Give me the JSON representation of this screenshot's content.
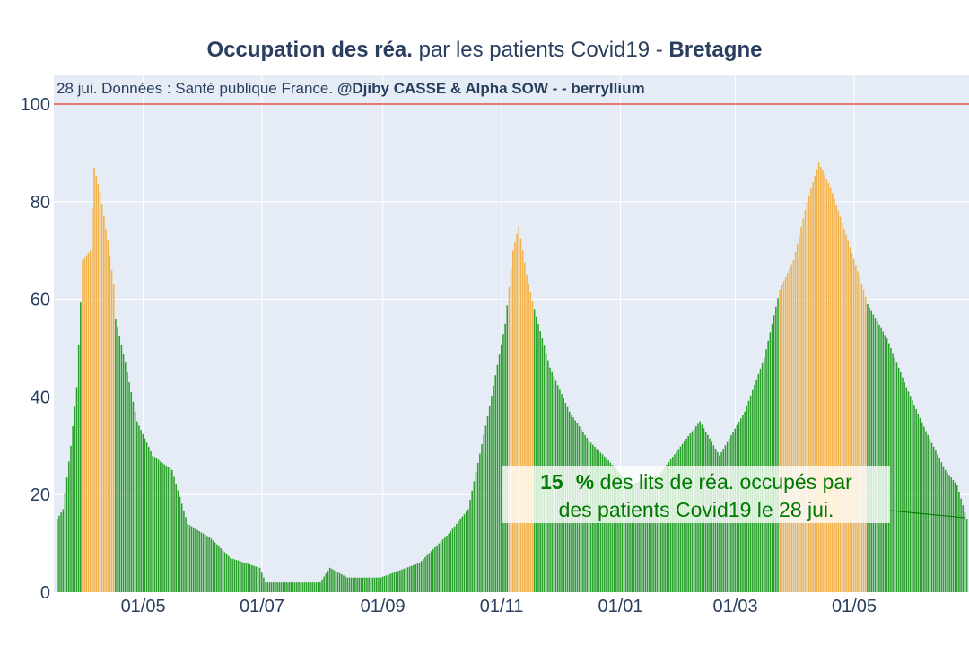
{
  "title": {
    "bold_part": "Occupation des réa.",
    "regular_part": " par les patients Covid19 - ",
    "region": "Bretagne"
  },
  "subtitle": {
    "regular": "28 jui. Données : Santé publique France. ",
    "bold": "@Djiby CASSE & Alpha SOW -  - berryllium"
  },
  "annotation": {
    "value": "15",
    "pct": "%",
    "line1_rest": " des lits de réa. occupés par",
    "line2": "des patients Covid19 le 28 jui."
  },
  "colors": {
    "background": "#e5ecf6",
    "green_bar": "#2ca02c",
    "orange_bar": "#f2b24b",
    "threshold_line": "#e8504b",
    "annotation_text": "#007a00",
    "text": "#2a3f5f"
  },
  "chart_data": {
    "type": "bar",
    "x_start": "2020-03-18",
    "x_end": "2021-06-28",
    "xlabel": "",
    "ylabel": "",
    "ylim": [
      0,
      100
    ],
    "y_ticks": [
      0,
      20,
      40,
      60,
      80,
      100
    ],
    "x_ticks": [
      {
        "date": "2020-05-01",
        "label": "01/05"
      },
      {
        "date": "2020-07-01",
        "label": "01/07"
      },
      {
        "date": "2020-09-01",
        "label": "01/09"
      },
      {
        "date": "2020-11-01",
        "label": "01/11"
      },
      {
        "date": "2021-01-01",
        "label": "01/01"
      },
      {
        "date": "2021-03-01",
        "label": "01/03"
      },
      {
        "date": "2021-05-01",
        "label": "01/05"
      }
    ],
    "threshold": 100,
    "series_profile": [
      [
        "2020-03-18",
        15
      ],
      [
        "2020-03-21",
        17
      ],
      [
        "2020-03-25",
        30
      ],
      [
        "2020-03-28",
        42
      ],
      [
        "2020-03-31",
        68
      ],
      [
        "2020-04-04",
        70
      ],
      [
        "2020-04-06",
        87
      ],
      [
        "2020-04-09",
        82
      ],
      [
        "2020-04-13",
        72
      ],
      [
        "2020-04-16",
        63
      ],
      [
        "2020-04-17",
        56
      ],
      [
        "2020-04-22",
        47
      ],
      [
        "2020-04-28",
        35
      ],
      [
        "2020-05-06",
        28
      ],
      [
        "2020-05-16",
        25
      ],
      [
        "2020-05-24",
        14
      ],
      [
        "2020-06-05",
        11
      ],
      [
        "2020-06-15",
        7
      ],
      [
        "2020-06-30",
        5
      ],
      [
        "2020-07-03",
        2
      ],
      [
        "2020-07-31",
        2
      ],
      [
        "2020-08-05",
        5
      ],
      [
        "2020-08-14",
        3
      ],
      [
        "2020-08-31",
        3
      ],
      [
        "2020-09-20",
        6
      ],
      [
        "2020-10-05",
        12
      ],
      [
        "2020-10-15",
        17
      ],
      [
        "2020-10-25",
        36
      ],
      [
        "2020-11-03",
        55
      ],
      [
        "2020-11-07",
        70
      ],
      [
        "2020-11-10",
        75
      ],
      [
        "2020-11-14",
        65
      ],
      [
        "2020-11-18",
        58
      ],
      [
        "2020-11-26",
        46
      ],
      [
        "2020-12-06",
        37
      ],
      [
        "2020-12-16",
        31
      ],
      [
        "2020-12-26",
        27
      ],
      [
        "2021-01-06",
        22
      ],
      [
        "2021-01-21",
        24
      ],
      [
        "2021-02-05",
        32
      ],
      [
        "2021-02-11",
        35
      ],
      [
        "2021-02-21",
        28
      ],
      [
        "2021-03-06",
        37
      ],
      [
        "2021-03-16",
        48
      ],
      [
        "2021-03-24",
        62
      ],
      [
        "2021-03-31",
        68
      ],
      [
        "2021-04-07",
        80
      ],
      [
        "2021-04-13",
        88
      ],
      [
        "2021-04-19",
        83
      ],
      [
        "2021-04-28",
        72
      ],
      [
        "2021-05-06",
        62
      ],
      [
        "2021-05-08",
        59
      ],
      [
        "2021-05-18",
        52
      ],
      [
        "2021-05-28",
        42
      ],
      [
        "2021-06-07",
        33
      ],
      [
        "2021-06-17",
        25
      ],
      [
        "2021-06-23",
        22
      ],
      [
        "2021-06-28",
        15
      ]
    ],
    "highlight_periods": [
      {
        "from": "2020-03-31",
        "to": "2020-04-16",
        "color": "#f2b24b"
      },
      {
        "from": "2020-11-05",
        "to": "2020-11-17",
        "color": "#f2b24b"
      },
      {
        "from": "2021-03-24",
        "to": "2021-05-07",
        "color": "#f2b24b"
      }
    ]
  }
}
